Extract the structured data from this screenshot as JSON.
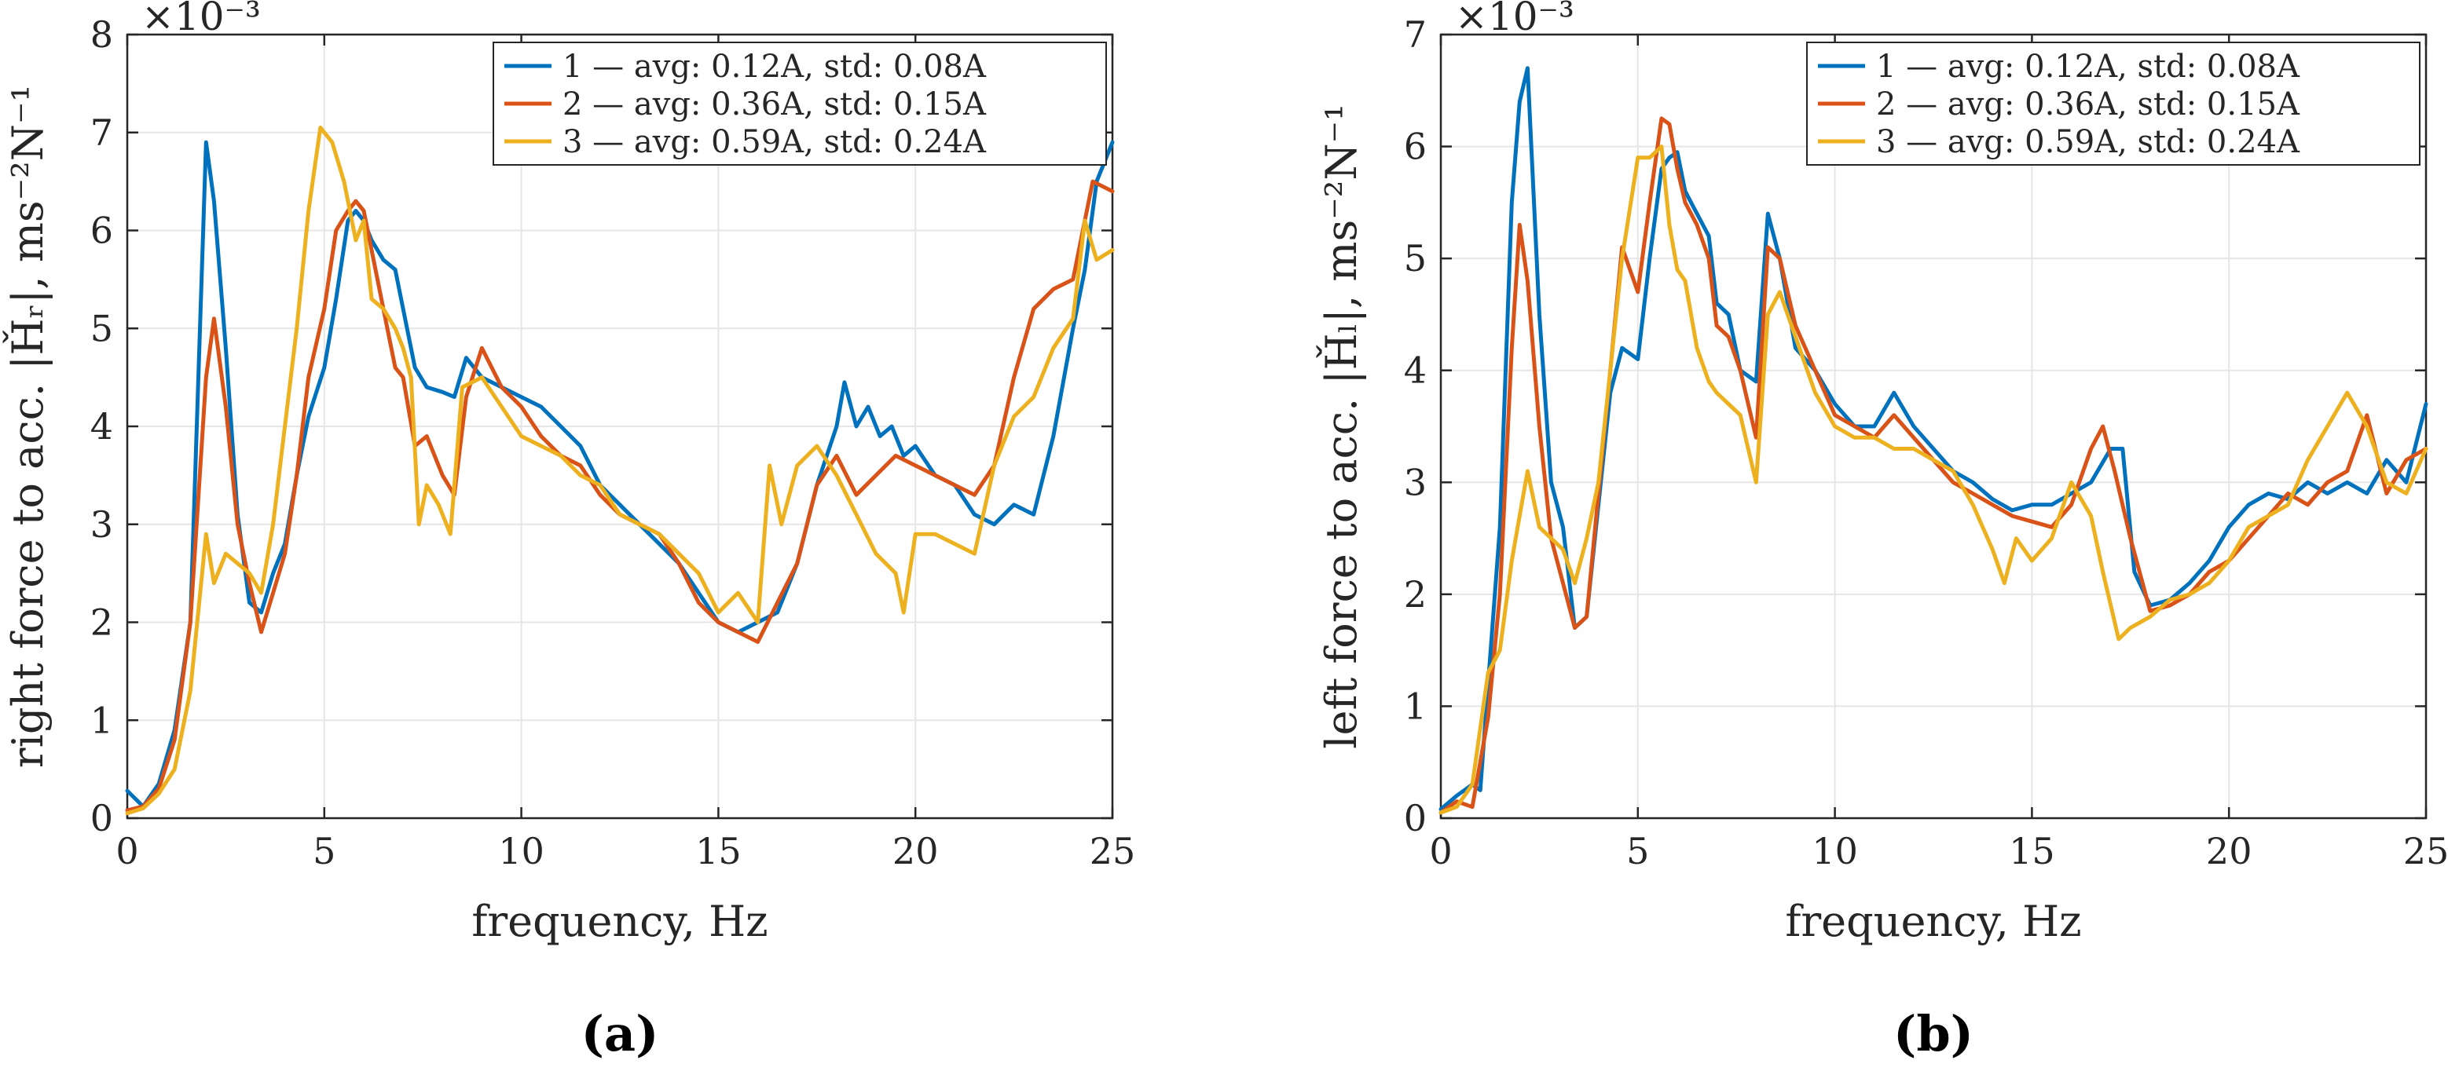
{
  "chart_data": [
    {
      "type": "line",
      "panel_label": "(a)",
      "xlabel": "frequency, Hz",
      "ylabel": "right force to acc. |Ȟᵣ|, ms⁻²N⁻¹",
      "y_exponent_label": "×10⁻³",
      "xlim": [
        0,
        25
      ],
      "ylim": [
        0,
        8
      ],
      "xticks": [
        "0",
        "5",
        "10",
        "15",
        "20",
        "25"
      ],
      "yticks": [
        "0",
        "1",
        "2",
        "3",
        "4",
        "5",
        "6",
        "7",
        "8"
      ],
      "grid": true,
      "legend_position": "top-right",
      "series": [
        {
          "name": "1 — avg: 0.12A, std: 0.08A",
          "color": "#0072BD",
          "x": [
            0,
            0.4,
            0.8,
            1.2,
            1.6,
            2.0,
            2.2,
            2.5,
            2.8,
            3.1,
            3.4,
            3.7,
            4.0,
            4.3,
            4.6,
            5.0,
            5.3,
            5.6,
            5.8,
            6.0,
            6.2,
            6.5,
            6.8,
            7.0,
            7.3,
            7.6,
            8.0,
            8.3,
            8.6,
            9.0,
            9.5,
            10.0,
            10.5,
            11.0,
            11.5,
            12.0,
            12.5,
            13.0,
            13.5,
            14.0,
            14.5,
            15.0,
            15.5,
            16.0,
            16.5,
            17.0,
            17.5,
            18.0,
            18.2,
            18.5,
            18.8,
            19.1,
            19.4,
            19.7,
            20.0,
            20.5,
            21.0,
            21.5,
            22.0,
            22.5,
            23.0,
            23.5,
            24.0,
            24.3,
            24.6,
            25.0
          ],
          "values": [
            0.28,
            0.12,
            0.35,
            0.9,
            2.0,
            6.9,
            6.3,
            4.8,
            3.1,
            2.2,
            2.1,
            2.5,
            2.8,
            3.5,
            4.1,
            4.6,
            5.3,
            6.1,
            6.2,
            6.1,
            5.9,
            5.7,
            5.6,
            5.2,
            4.6,
            4.4,
            4.35,
            4.3,
            4.7,
            4.5,
            4.4,
            4.3,
            4.2,
            4.0,
            3.8,
            3.4,
            3.2,
            3.0,
            2.8,
            2.6,
            2.3,
            2.0,
            1.9,
            2.0,
            2.1,
            2.6,
            3.4,
            4.0,
            4.45,
            4.0,
            4.2,
            3.9,
            4.0,
            3.7,
            3.8,
            3.5,
            3.4,
            3.1,
            3.0,
            3.2,
            3.1,
            3.9,
            5.0,
            5.6,
            6.5,
            6.9
          ]
        },
        {
          "name": "2 — avg: 0.36A, std: 0.15A",
          "color": "#D95319",
          "x": [
            0,
            0.4,
            0.8,
            1.2,
            1.6,
            2.0,
            2.2,
            2.5,
            2.8,
            3.1,
            3.4,
            3.7,
            4.0,
            4.3,
            4.6,
            5.0,
            5.3,
            5.6,
            5.8,
            6.0,
            6.2,
            6.5,
            6.8,
            7.0,
            7.3,
            7.6,
            8.0,
            8.3,
            8.6,
            9.0,
            9.5,
            10.0,
            10.5,
            11.0,
            11.5,
            12.0,
            12.5,
            13.0,
            13.5,
            14.0,
            14.5,
            15.0,
            15.5,
            16.0,
            16.5,
            17.0,
            17.5,
            18.0,
            18.5,
            19.0,
            19.5,
            20.0,
            20.5,
            21.0,
            21.5,
            22.0,
            22.5,
            23.0,
            23.5,
            24.0,
            24.5,
            25.0
          ],
          "values": [
            0.08,
            0.12,
            0.3,
            0.8,
            2.0,
            4.5,
            5.1,
            4.2,
            3.0,
            2.4,
            1.9,
            2.3,
            2.7,
            3.5,
            4.5,
            5.2,
            6.0,
            6.2,
            6.3,
            6.2,
            5.8,
            5.2,
            4.6,
            4.5,
            3.8,
            3.9,
            3.5,
            3.3,
            4.3,
            4.8,
            4.4,
            4.2,
            3.9,
            3.7,
            3.6,
            3.3,
            3.1,
            3.0,
            2.9,
            2.6,
            2.2,
            2.0,
            1.9,
            1.8,
            2.2,
            2.6,
            3.4,
            3.7,
            3.3,
            3.5,
            3.7,
            3.6,
            3.5,
            3.4,
            3.3,
            3.6,
            4.5,
            5.2,
            5.4,
            5.5,
            6.5,
            6.4
          ]
        },
        {
          "name": "3 — avg: 0.59A, std: 0.24A",
          "color": "#EDB120",
          "x": [
            0,
            0.4,
            0.8,
            1.2,
            1.6,
            2.0,
            2.2,
            2.5,
            2.8,
            3.1,
            3.4,
            3.7,
            4.0,
            4.3,
            4.6,
            4.9,
            5.2,
            5.5,
            5.8,
            6.0,
            6.2,
            6.5,
            6.8,
            7.0,
            7.2,
            7.4,
            7.6,
            7.9,
            8.2,
            8.5,
            9.0,
            9.5,
            10.0,
            10.5,
            11.0,
            11.5,
            12.0,
            12.5,
            13.0,
            13.5,
            14.0,
            14.5,
            15.0,
            15.5,
            16.0,
            16.3,
            16.6,
            17.0,
            17.5,
            18.0,
            18.5,
            19.0,
            19.5,
            19.7,
            20.0,
            20.5,
            21.0,
            21.5,
            22.0,
            22.5,
            23.0,
            23.5,
            24.0,
            24.3,
            24.6,
            25.0
          ],
          "values": [
            0.05,
            0.1,
            0.25,
            0.5,
            1.3,
            2.9,
            2.4,
            2.7,
            2.6,
            2.5,
            2.3,
            3.0,
            4.0,
            5.0,
            6.2,
            7.05,
            6.9,
            6.5,
            5.9,
            6.1,
            5.3,
            5.2,
            5.0,
            4.8,
            4.5,
            3.0,
            3.4,
            3.2,
            2.9,
            4.4,
            4.5,
            4.2,
            3.9,
            3.8,
            3.7,
            3.5,
            3.4,
            3.1,
            3.0,
            2.9,
            2.7,
            2.5,
            2.1,
            2.3,
            2.0,
            3.6,
            3.0,
            3.6,
            3.8,
            3.5,
            3.1,
            2.7,
            2.5,
            2.1,
            2.9,
            2.9,
            2.8,
            2.7,
            3.6,
            4.1,
            4.3,
            4.8,
            5.1,
            6.1,
            5.7,
            5.8
          ]
        }
      ]
    },
    {
      "type": "line",
      "panel_label": "(b)",
      "xlabel": "frequency, Hz",
      "ylabel": "left force to acc. |Ȟₗ|, ms⁻²N⁻¹",
      "y_exponent_label": "×10⁻³",
      "xlim": [
        0,
        25
      ],
      "ylim": [
        0,
        7
      ],
      "xticks": [
        "0",
        "5",
        "10",
        "15",
        "20",
        "25"
      ],
      "yticks": [
        "0",
        "1",
        "2",
        "3",
        "4",
        "5",
        "6",
        "7"
      ],
      "grid": true,
      "legend_position": "top-right",
      "series": [
        {
          "name": "1 — avg: 0.12A, std: 0.08A",
          "color": "#0072BD",
          "x": [
            0,
            0.4,
            0.8,
            1.0,
            1.2,
            1.5,
            1.8,
            2.0,
            2.2,
            2.5,
            2.8,
            3.1,
            3.4,
            3.7,
            4.0,
            4.3,
            4.6,
            5.0,
            5.3,
            5.6,
            5.8,
            6.0,
            6.2,
            6.5,
            6.8,
            7.0,
            7.3,
            7.6,
            8.0,
            8.3,
            8.6,
            9.0,
            9.5,
            10.0,
            10.5,
            11.0,
            11.5,
            12.0,
            12.5,
            13.0,
            13.5,
            14.0,
            14.5,
            15.0,
            15.5,
            16.0,
            16.5,
            17.0,
            17.3,
            17.6,
            18.0,
            18.5,
            19.0,
            19.5,
            20.0,
            20.5,
            21.0,
            21.5,
            22.0,
            22.5,
            23.0,
            23.5,
            24.0,
            24.5,
            25.0
          ],
          "values": [
            0.08,
            0.2,
            0.3,
            0.25,
            1.2,
            2.6,
            5.5,
            6.4,
            6.7,
            4.5,
            3.0,
            2.6,
            1.7,
            1.8,
            2.8,
            3.8,
            4.2,
            4.1,
            5.0,
            5.8,
            5.9,
            5.95,
            5.6,
            5.4,
            5.2,
            4.6,
            4.5,
            4.0,
            3.9,
            5.4,
            5.0,
            4.2,
            4.0,
            3.7,
            3.5,
            3.5,
            3.8,
            3.5,
            3.3,
            3.1,
            3.0,
            2.85,
            2.75,
            2.8,
            2.8,
            2.9,
            3.0,
            3.3,
            3.3,
            2.2,
            1.9,
            1.95,
            2.1,
            2.3,
            2.6,
            2.8,
            2.9,
            2.85,
            3.0,
            2.9,
            3.0,
            2.9,
            3.2,
            3.0,
            3.7
          ]
        },
        {
          "name": "2 — avg: 0.36A, std: 0.15A",
          "color": "#D95319",
          "x": [
            0,
            0.4,
            0.8,
            1.2,
            1.5,
            1.8,
            2.0,
            2.2,
            2.5,
            2.8,
            3.1,
            3.4,
            3.7,
            4.0,
            4.3,
            4.6,
            5.0,
            5.3,
            5.6,
            5.8,
            6.0,
            6.2,
            6.5,
            6.8,
            7.0,
            7.3,
            7.6,
            8.0,
            8.3,
            8.6,
            9.0,
            9.5,
            10.0,
            10.5,
            11.0,
            11.5,
            12.0,
            12.5,
            13.0,
            13.5,
            14.0,
            14.5,
            15.0,
            15.5,
            16.0,
            16.5,
            16.8,
            17.1,
            17.5,
            18.0,
            18.5,
            19.0,
            19.5,
            20.0,
            20.5,
            21.0,
            21.5,
            22.0,
            22.5,
            23.0,
            23.5,
            24.0,
            24.5,
            25.0
          ],
          "values": [
            0.05,
            0.15,
            0.1,
            0.9,
            2.0,
            4.2,
            5.3,
            4.8,
            3.5,
            2.5,
            2.1,
            1.7,
            1.8,
            2.9,
            4.0,
            5.1,
            4.7,
            5.5,
            6.25,
            6.2,
            5.8,
            5.5,
            5.3,
            5.0,
            4.4,
            4.3,
            4.0,
            3.4,
            5.1,
            5.0,
            4.4,
            4.0,
            3.6,
            3.5,
            3.4,
            3.6,
            3.4,
            3.2,
            3.0,
            2.9,
            2.8,
            2.7,
            2.65,
            2.6,
            2.8,
            3.3,
            3.5,
            3.1,
            2.5,
            1.85,
            1.9,
            2.0,
            2.2,
            2.3,
            2.5,
            2.7,
            2.9,
            2.8,
            3.0,
            3.1,
            3.6,
            2.9,
            3.2,
            3.3
          ]
        },
        {
          "name": "3 — avg: 0.59A, std: 0.24A",
          "color": "#EDB120",
          "x": [
            0,
            0.4,
            0.8,
            1.2,
            1.5,
            1.8,
            2.0,
            2.2,
            2.5,
            2.8,
            3.1,
            3.4,
            3.7,
            4.0,
            4.3,
            4.6,
            5.0,
            5.3,
            5.6,
            5.8,
            6.0,
            6.2,
            6.5,
            6.8,
            7.0,
            7.3,
            7.6,
            8.0,
            8.3,
            8.6,
            9.0,
            9.5,
            10.0,
            10.5,
            11.0,
            11.5,
            12.0,
            12.5,
            13.0,
            13.5,
            14.0,
            14.3,
            14.6,
            15.0,
            15.5,
            16.0,
            16.5,
            16.8,
            17.2,
            17.5,
            18.0,
            18.5,
            19.0,
            19.5,
            20.0,
            20.5,
            21.0,
            21.5,
            22.0,
            22.5,
            23.0,
            23.5,
            24.0,
            24.5,
            25.0
          ],
          "values": [
            0.05,
            0.1,
            0.3,
            1.3,
            1.5,
            2.3,
            2.7,
            3.1,
            2.6,
            2.5,
            2.4,
            2.1,
            2.5,
            3.0,
            4.0,
            5.0,
            5.9,
            5.9,
            6.0,
            5.3,
            4.9,
            4.8,
            4.2,
            3.9,
            3.8,
            3.7,
            3.6,
            3.0,
            4.5,
            4.7,
            4.3,
            3.8,
            3.5,
            3.4,
            3.4,
            3.3,
            3.3,
            3.2,
            3.1,
            2.8,
            2.4,
            2.1,
            2.5,
            2.3,
            2.5,
            3.0,
            2.7,
            2.2,
            1.6,
            1.7,
            1.8,
            1.95,
            2.0,
            2.1,
            2.3,
            2.6,
            2.7,
            2.8,
            3.2,
            3.5,
            3.8,
            3.5,
            3.0,
            2.9,
            3.3
          ]
        }
      ]
    }
  ]
}
